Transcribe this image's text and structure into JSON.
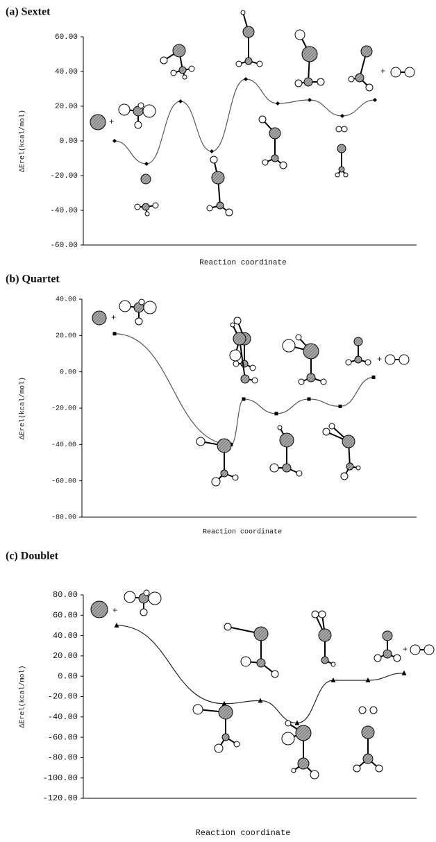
{
  "chart_data": [
    {
      "type": "line",
      "title": "(a) Sextet",
      "x_label": "Reaction coordinate",
      "y_label": "ΔErel(kcal/mol)",
      "series": [
        {
          "color": "#000000",
          "line_color": "#555555",
          "marker": "diamond",
          "values": [
            0,
            -13.2,
            22.8,
            -6,
            35.6,
            21.6,
            23.6,
            14.4,
            23.6
          ]
        }
      ],
      "ylim": [
        -60,
        60
      ],
      "yticks": [
        {
          "value": -60,
          "label": "-60.00"
        },
        {
          "value": -40,
          "label": "-40.00"
        },
        {
          "value": -20,
          "label": "-20.00"
        },
        {
          "value": 0,
          "label": "0.00"
        },
        {
          "value": 20,
          "label": "20.00"
        },
        {
          "value": 40,
          "label": "40.00"
        },
        {
          "value": 60,
          "label": "60.00"
        }
      ]
    },
    {
      "type": "line",
      "title": "(b) Quartet",
      "x_label": "Reaction coordinate",
      "y_label": "ΔErel(kcal/mol)",
      "series": [
        {
          "color": "#000000",
          "line_color": "#555555",
          "marker": "square",
          "values": [
            21,
            -40,
            -15,
            -23,
            -15,
            -19,
            -3
          ]
        }
      ],
      "ylim": [
        -80,
        40
      ],
      "yticks": [
        {
          "value": -80,
          "label": "-80.00"
        },
        {
          "value": -60,
          "label": "-60.00"
        },
        {
          "value": -40,
          "label": "-40.00"
        },
        {
          "value": -20,
          "label": "-20.00"
        },
        {
          "value": 0,
          "label": "0.00"
        },
        {
          "value": 20,
          "label": "20.00"
        },
        {
          "value": 40,
          "label": "40.00"
        }
      ]
    },
    {
      "type": "line",
      "title": "(c) Doublet",
      "x_label": "Reaction coordinate",
      "y_label": "ΔErel(kcal/mol)",
      "series": [
        {
          "color": "#000000",
          "line_color": "#222222",
          "marker": "triangle",
          "values": [
            50,
            -27,
            -24,
            -46,
            -4,
            -4,
            3
          ]
        }
      ],
      "ylim": [
        -120,
        80
      ],
      "yticks": [
        {
          "value": -120,
          "label": "-120.00"
        },
        {
          "value": -100,
          "label": "-100.00"
        },
        {
          "value": -80,
          "label": "-80.00"
        },
        {
          "value": -60,
          "label": "-60.00"
        },
        {
          "value": -40,
          "label": "-40.00"
        },
        {
          "value": -20,
          "label": "-20.00"
        },
        {
          "value": 0,
          "label": "0.00"
        },
        {
          "value": 20,
          "label": "20.00"
        },
        {
          "value": 40,
          "label": "40.00"
        },
        {
          "value": 60,
          "label": "60.00"
        },
        {
          "value": 80,
          "label": "80.00"
        }
      ]
    }
  ]
}
